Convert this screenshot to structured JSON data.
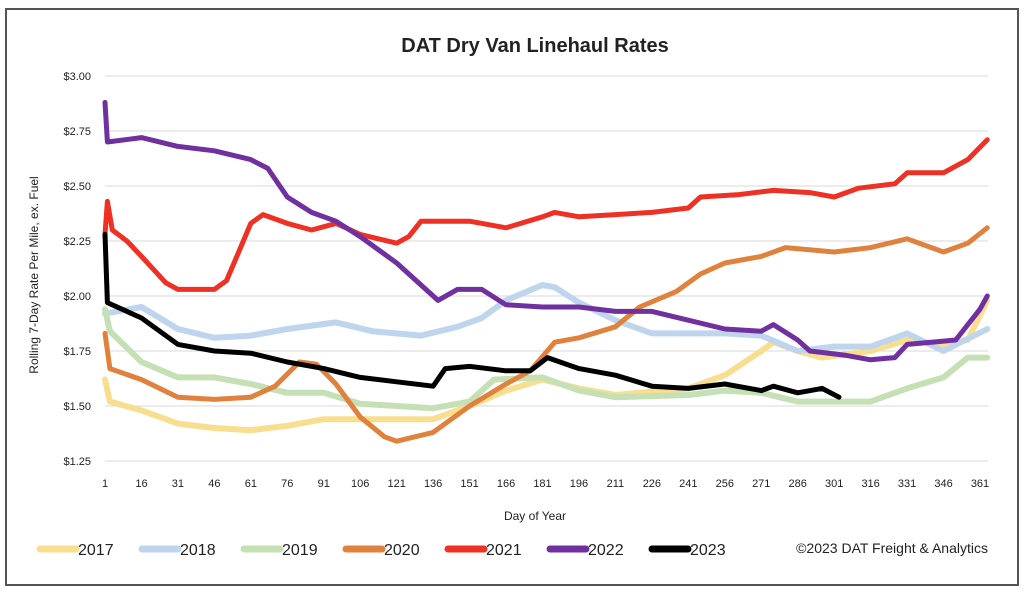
{
  "chart_data": {
    "type": "line",
    "title": "DAT Dry Van Linehaul Rates",
    "xlabel": "Day of Year",
    "ylabel": "Rolling 7-Day Rate Per Mile, ex. Fuel",
    "xlim": [
      1,
      365
    ],
    "ylim": [
      1.25,
      3.0
    ],
    "x_ticks": [
      "1",
      "16",
      "31",
      "46",
      "61",
      "76",
      "91",
      "106",
      "121",
      "136",
      "151",
      "166",
      "181",
      "196",
      "211",
      "226",
      "241",
      "256",
      "271",
      "286",
      "301",
      "316",
      "331",
      "346",
      "361"
    ],
    "y_ticks": [
      "$1.25",
      "$1.50",
      "$1.75",
      "$2.00",
      "$2.25",
      "$2.50",
      "$2.75",
      "$3.00"
    ],
    "grid": "horizontal",
    "legend_position": "bottom",
    "copyright": "©2023 DAT Freight & Analytics",
    "series": [
      {
        "name": "2017",
        "color": "#f7df8f",
        "points": [
          [
            1,
            1.62
          ],
          [
            3,
            1.52
          ],
          [
            16,
            1.48
          ],
          [
            31,
            1.42
          ],
          [
            46,
            1.4
          ],
          [
            61,
            1.39
          ],
          [
            76,
            1.41
          ],
          [
            91,
            1.44
          ],
          [
            106,
            1.44
          ],
          [
            121,
            1.44
          ],
          [
            136,
            1.44
          ],
          [
            151,
            1.5
          ],
          [
            166,
            1.57
          ],
          [
            181,
            1.62
          ],
          [
            196,
            1.58
          ],
          [
            211,
            1.55
          ],
          [
            241,
            1.58
          ],
          [
            256,
            1.64
          ],
          [
            271,
            1.75
          ],
          [
            276,
            1.79
          ],
          [
            286,
            1.75
          ],
          [
            296,
            1.72
          ],
          [
            316,
            1.75
          ],
          [
            331,
            1.8
          ],
          [
            346,
            1.78
          ],
          [
            356,
            1.8
          ],
          [
            364,
            1.98
          ]
        ]
      },
      {
        "name": "2018",
        "color": "#bfd5ee",
        "points": [
          [
            1,
            1.92
          ],
          [
            16,
            1.95
          ],
          [
            31,
            1.85
          ],
          [
            46,
            1.81
          ],
          [
            61,
            1.82
          ],
          [
            76,
            1.85
          ],
          [
            96,
            1.88
          ],
          [
            111,
            1.84
          ],
          [
            131,
            1.82
          ],
          [
            146,
            1.86
          ],
          [
            156,
            1.9
          ],
          [
            166,
            1.98
          ],
          [
            181,
            2.05
          ],
          [
            186,
            2.04
          ],
          [
            196,
            1.97
          ],
          [
            211,
            1.89
          ],
          [
            226,
            1.83
          ],
          [
            256,
            1.83
          ],
          [
            271,
            1.82
          ],
          [
            286,
            1.75
          ],
          [
            301,
            1.77
          ],
          [
            316,
            1.77
          ],
          [
            331,
            1.83
          ],
          [
            346,
            1.75
          ],
          [
            364,
            1.85
          ]
        ]
      },
      {
        "name": "2019",
        "color": "#c5e0b4",
        "points": [
          [
            1,
            1.94
          ],
          [
            3,
            1.84
          ],
          [
            16,
            1.7
          ],
          [
            31,
            1.63
          ],
          [
            46,
            1.63
          ],
          [
            61,
            1.6
          ],
          [
            76,
            1.56
          ],
          [
            91,
            1.56
          ],
          [
            106,
            1.51
          ],
          [
            121,
            1.5
          ],
          [
            136,
            1.49
          ],
          [
            151,
            1.52
          ],
          [
            161,
            1.62
          ],
          [
            181,
            1.63
          ],
          [
            196,
            1.57
          ],
          [
            211,
            1.54
          ],
          [
            241,
            1.55
          ],
          [
            256,
            1.57
          ],
          [
            271,
            1.56
          ],
          [
            286,
            1.52
          ],
          [
            316,
            1.52
          ],
          [
            331,
            1.58
          ],
          [
            346,
            1.63
          ],
          [
            356,
            1.72
          ],
          [
            364,
            1.72
          ]
        ]
      },
      {
        "name": "2020",
        "color": "#e0823d",
        "points": [
          [
            1,
            1.83
          ],
          [
            3,
            1.67
          ],
          [
            16,
            1.62
          ],
          [
            31,
            1.54
          ],
          [
            46,
            1.53
          ],
          [
            61,
            1.54
          ],
          [
            71,
            1.59
          ],
          [
            81,
            1.7
          ],
          [
            88,
            1.69
          ],
          [
            96,
            1.6
          ],
          [
            106,
            1.45
          ],
          [
            116,
            1.36
          ],
          [
            121,
            1.34
          ],
          [
            136,
            1.38
          ],
          [
            151,
            1.5
          ],
          [
            166,
            1.6
          ],
          [
            176,
            1.66
          ],
          [
            186,
            1.79
          ],
          [
            196,
            1.81
          ],
          [
            211,
            1.86
          ],
          [
            221,
            1.95
          ],
          [
            236,
            2.02
          ],
          [
            246,
            2.1
          ],
          [
            256,
            2.15
          ],
          [
            271,
            2.18
          ],
          [
            281,
            2.22
          ],
          [
            301,
            2.2
          ],
          [
            316,
            2.22
          ],
          [
            331,
            2.26
          ],
          [
            346,
            2.2
          ],
          [
            356,
            2.24
          ],
          [
            364,
            2.31
          ]
        ]
      },
      {
        "name": "2021",
        "color": "#ee3124",
        "points": [
          [
            1,
            2.28
          ],
          [
            2,
            2.43
          ],
          [
            4,
            2.3
          ],
          [
            10,
            2.25
          ],
          [
            16,
            2.18
          ],
          [
            26,
            2.06
          ],
          [
            31,
            2.03
          ],
          [
            46,
            2.03
          ],
          [
            51,
            2.07
          ],
          [
            56,
            2.2
          ],
          [
            61,
            2.33
          ],
          [
            66,
            2.37
          ],
          [
            76,
            2.33
          ],
          [
            86,
            2.3
          ],
          [
            96,
            2.33
          ],
          [
            106,
            2.28
          ],
          [
            121,
            2.24
          ],
          [
            126,
            2.27
          ],
          [
            131,
            2.34
          ],
          [
            151,
            2.34
          ],
          [
            166,
            2.31
          ],
          [
            181,
            2.36
          ],
          [
            186,
            2.38
          ],
          [
            196,
            2.36
          ],
          [
            211,
            2.37
          ],
          [
            226,
            2.38
          ],
          [
            241,
            2.4
          ],
          [
            246,
            2.45
          ],
          [
            261,
            2.46
          ],
          [
            276,
            2.48
          ],
          [
            291,
            2.47
          ],
          [
            301,
            2.45
          ],
          [
            311,
            2.49
          ],
          [
            326,
            2.51
          ],
          [
            331,
            2.56
          ],
          [
            346,
            2.56
          ],
          [
            356,
            2.62
          ],
          [
            364,
            2.71
          ]
        ]
      },
      {
        "name": "2022",
        "color": "#7030a0",
        "points": [
          [
            1,
            2.88
          ],
          [
            2,
            2.7
          ],
          [
            16,
            2.72
          ],
          [
            31,
            2.68
          ],
          [
            46,
            2.66
          ],
          [
            61,
            2.62
          ],
          [
            68,
            2.58
          ],
          [
            76,
            2.45
          ],
          [
            86,
            2.38
          ],
          [
            96,
            2.34
          ],
          [
            106,
            2.27
          ],
          [
            121,
            2.15
          ],
          [
            131,
            2.05
          ],
          [
            138,
            1.98
          ],
          [
            146,
            2.03
          ],
          [
            156,
            2.03
          ],
          [
            166,
            1.96
          ],
          [
            181,
            1.95
          ],
          [
            196,
            1.95
          ],
          [
            211,
            1.93
          ],
          [
            226,
            1.93
          ],
          [
            241,
            1.89
          ],
          [
            256,
            1.85
          ],
          [
            271,
            1.84
          ],
          [
            276,
            1.87
          ],
          [
            286,
            1.8
          ],
          [
            291,
            1.75
          ],
          [
            306,
            1.73
          ],
          [
            316,
            1.71
          ],
          [
            326,
            1.72
          ],
          [
            331,
            1.78
          ],
          [
            341,
            1.79
          ],
          [
            351,
            1.8
          ],
          [
            361,
            1.94
          ],
          [
            364,
            2.0
          ]
        ]
      },
      {
        "name": "2023",
        "color": "#000000",
        "points": [
          [
            1,
            2.28
          ],
          [
            2,
            1.97
          ],
          [
            16,
            1.9
          ],
          [
            31,
            1.78
          ],
          [
            46,
            1.75
          ],
          [
            61,
            1.74
          ],
          [
            76,
            1.7
          ],
          [
            91,
            1.67
          ],
          [
            106,
            1.63
          ],
          [
            121,
            1.61
          ],
          [
            136,
            1.59
          ],
          [
            141,
            1.67
          ],
          [
            151,
            1.68
          ],
          [
            166,
            1.66
          ],
          [
            176,
            1.66
          ],
          [
            183,
            1.72
          ],
          [
            196,
            1.67
          ],
          [
            211,
            1.64
          ],
          [
            226,
            1.59
          ],
          [
            241,
            1.58
          ],
          [
            256,
            1.6
          ],
          [
            271,
            1.57
          ],
          [
            276,
            1.59
          ],
          [
            286,
            1.56
          ],
          [
            296,
            1.58
          ],
          [
            303,
            1.54
          ]
        ]
      }
    ]
  }
}
